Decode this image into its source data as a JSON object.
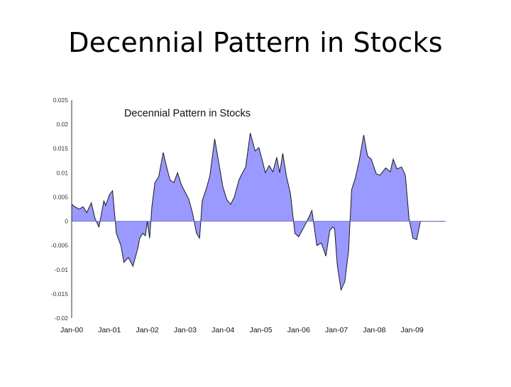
{
  "slide": {
    "title": "Decennial Pattern in Stocks"
  },
  "chart_data": {
    "type": "area",
    "title": "Decennial Pattern in Stocks",
    "xlabel": "",
    "ylabel": "",
    "ylim": [
      -0.02,
      0.025
    ],
    "y_ticks": [
      0.025,
      0.02,
      0.015,
      0.01,
      0.005,
      0,
      -0.005,
      -0.01,
      -0.015,
      -0.02
    ],
    "y_tick_labels": [
      "0.025",
      "0.02",
      "0.015",
      "0.01",
      "0.005",
      "0",
      "-0.005",
      "-0.01",
      "-0.015",
      "-0.02"
    ],
    "x_tick_labels": [
      "Jan-00",
      "Jan-01",
      "Jan-02",
      "Jan-03",
      "Jan-04",
      "Jan-05",
      "Jan-06",
      "Jan-07",
      "Jan-08",
      "Jan-09"
    ],
    "xlim_years": [
      0,
      10
    ],
    "grid": false,
    "legend": "none",
    "fill_color": "#9999ff",
    "line_color": "#1a1a1a",
    "series": [
      {
        "x": [
          0.0,
          0.08,
          0.2,
          0.3,
          0.4,
          0.52,
          0.62,
          0.72,
          0.85,
          0.9,
          1.0,
          1.08,
          1.18,
          1.3,
          1.38,
          1.5,
          1.62,
          1.75,
          1.8,
          1.88,
          1.95,
          2.0,
          2.06,
          2.12,
          2.2,
          2.3,
          2.42,
          2.5,
          2.6,
          2.7,
          2.8,
          2.9,
          3.0,
          3.1,
          3.2,
          3.3,
          3.38,
          3.45,
          3.55,
          3.65,
          3.78,
          3.9,
          4.0,
          4.1,
          4.2,
          4.3,
          4.42,
          4.5,
          4.6,
          4.72,
          4.85,
          4.95,
          5.05,
          5.12,
          5.22,
          5.32,
          5.42,
          5.5,
          5.58,
          5.68,
          5.78,
          5.9,
          6.0,
          6.12,
          6.22,
          6.35,
          6.48,
          6.6,
          6.72,
          6.82,
          6.9,
          6.95,
          7.02,
          7.12,
          7.22,
          7.32,
          7.4,
          7.5,
          7.6,
          7.72,
          7.82,
          7.92,
          8.05,
          8.15,
          8.3,
          8.42,
          8.5,
          8.6,
          8.72,
          8.82,
          8.92,
          9.02,
          9.12,
          9.22,
          9.32,
          9.42,
          9.5,
          9.6,
          9.68,
          9.78,
          9.88
        ],
        "values": [
          0.0035,
          0.003,
          0.0025,
          0.003,
          0.0018,
          0.0038,
          0.0005,
          -0.0012,
          0.0042,
          0.0033,
          0.0055,
          0.0063,
          -0.0025,
          -0.005,
          -0.0085,
          -0.0075,
          -0.0093,
          -0.0055,
          -0.0035,
          -0.0025,
          -0.003,
          0.0,
          -0.0035,
          0.003,
          0.008,
          0.0092,
          0.0142,
          0.0115,
          0.0085,
          0.008,
          0.01,
          0.0075,
          0.006,
          0.0045,
          0.0015,
          -0.0025,
          -0.0035,
          0.0042,
          0.0065,
          0.0092,
          0.017,
          0.0115,
          0.007,
          0.0045,
          0.0035,
          0.005,
          0.0085,
          0.0098,
          0.0112,
          0.0182,
          0.0145,
          0.0152,
          0.0122,
          0.01,
          0.0115,
          0.0102,
          0.0132,
          0.01,
          0.014,
          0.0092,
          0.0058,
          -0.0025,
          -0.0032,
          -0.0015,
          0.0,
          0.0022,
          -0.005,
          -0.0045,
          -0.0072,
          -0.002,
          -0.0012,
          -0.0015,
          -0.009,
          -0.0142,
          -0.0125,
          -0.006,
          0.0065,
          0.009,
          0.0125,
          0.0178,
          0.0135,
          0.0128,
          0.0098,
          0.0095,
          0.011,
          0.0102,
          0.0128,
          0.0108,
          0.0112,
          0.0095,
          0.0005,
          -0.0035,
          -0.0038,
          0.0,
          0.0,
          0.0,
          0.0,
          0.0,
          0.0,
          0.0,
          0.0
        ]
      }
    ]
  }
}
